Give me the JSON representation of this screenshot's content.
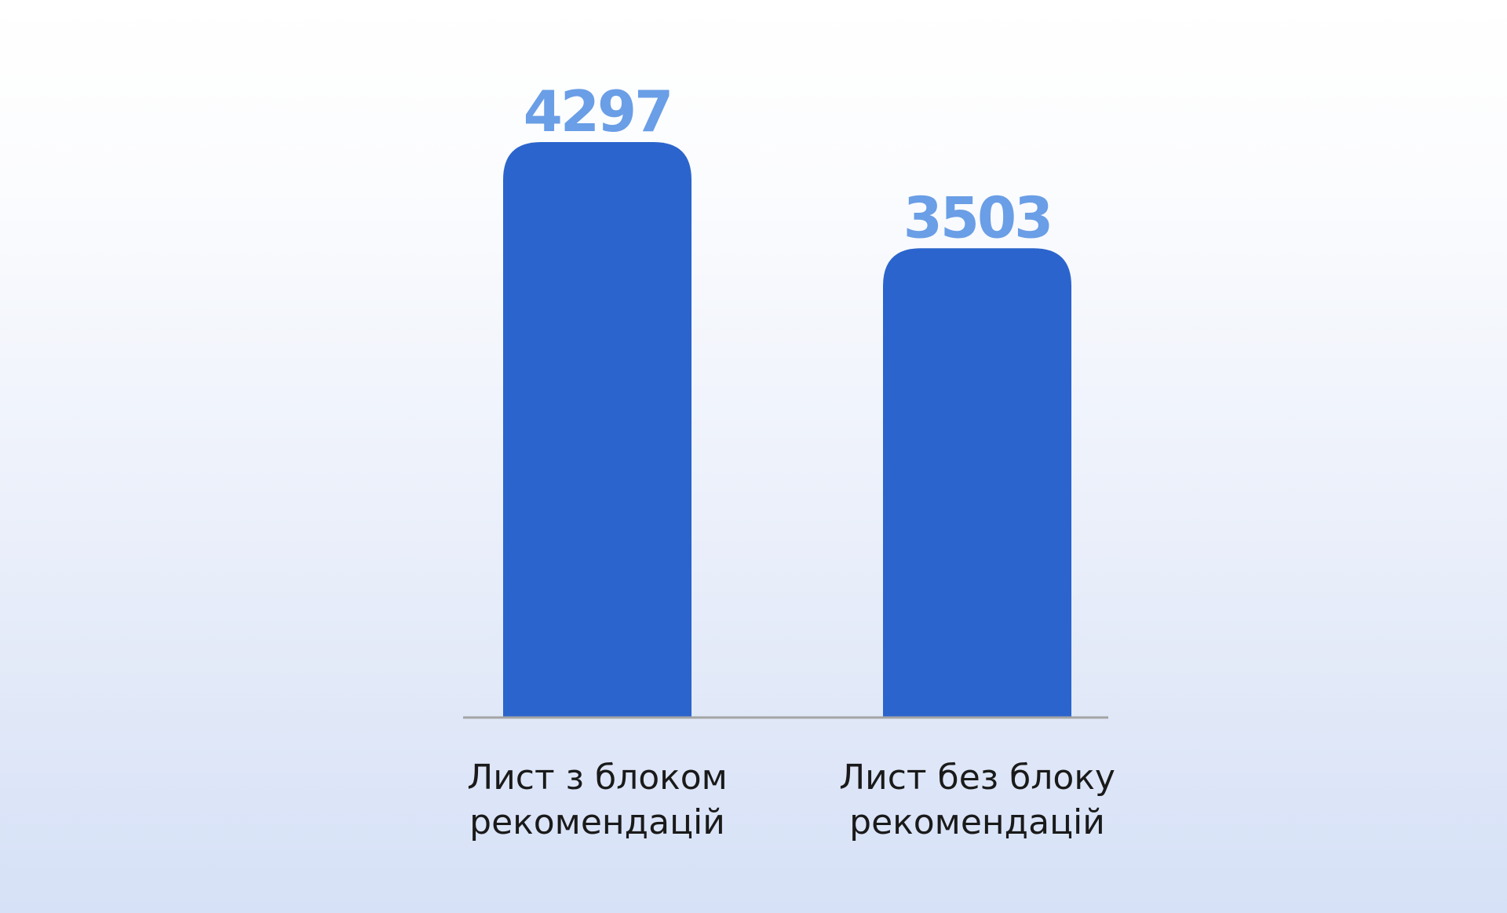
{
  "chart_data": {
    "type": "bar",
    "title": "",
    "xlabel": "",
    "ylabel": "",
    "ylim": [
      0,
      4297
    ],
    "grid": false,
    "categories": [
      [
        "Лист з блоком",
        "рекомендацій"
      ],
      [
        "Лист без блоку",
        "рекомендацій"
      ]
    ],
    "values": [
      4297,
      3503
    ],
    "value_labels": [
      "4297",
      "3503"
    ]
  },
  "colors": {
    "bar": "#2b64cc",
    "value_label": "#6a9ee6",
    "baseline": "#a4a4a4"
  }
}
